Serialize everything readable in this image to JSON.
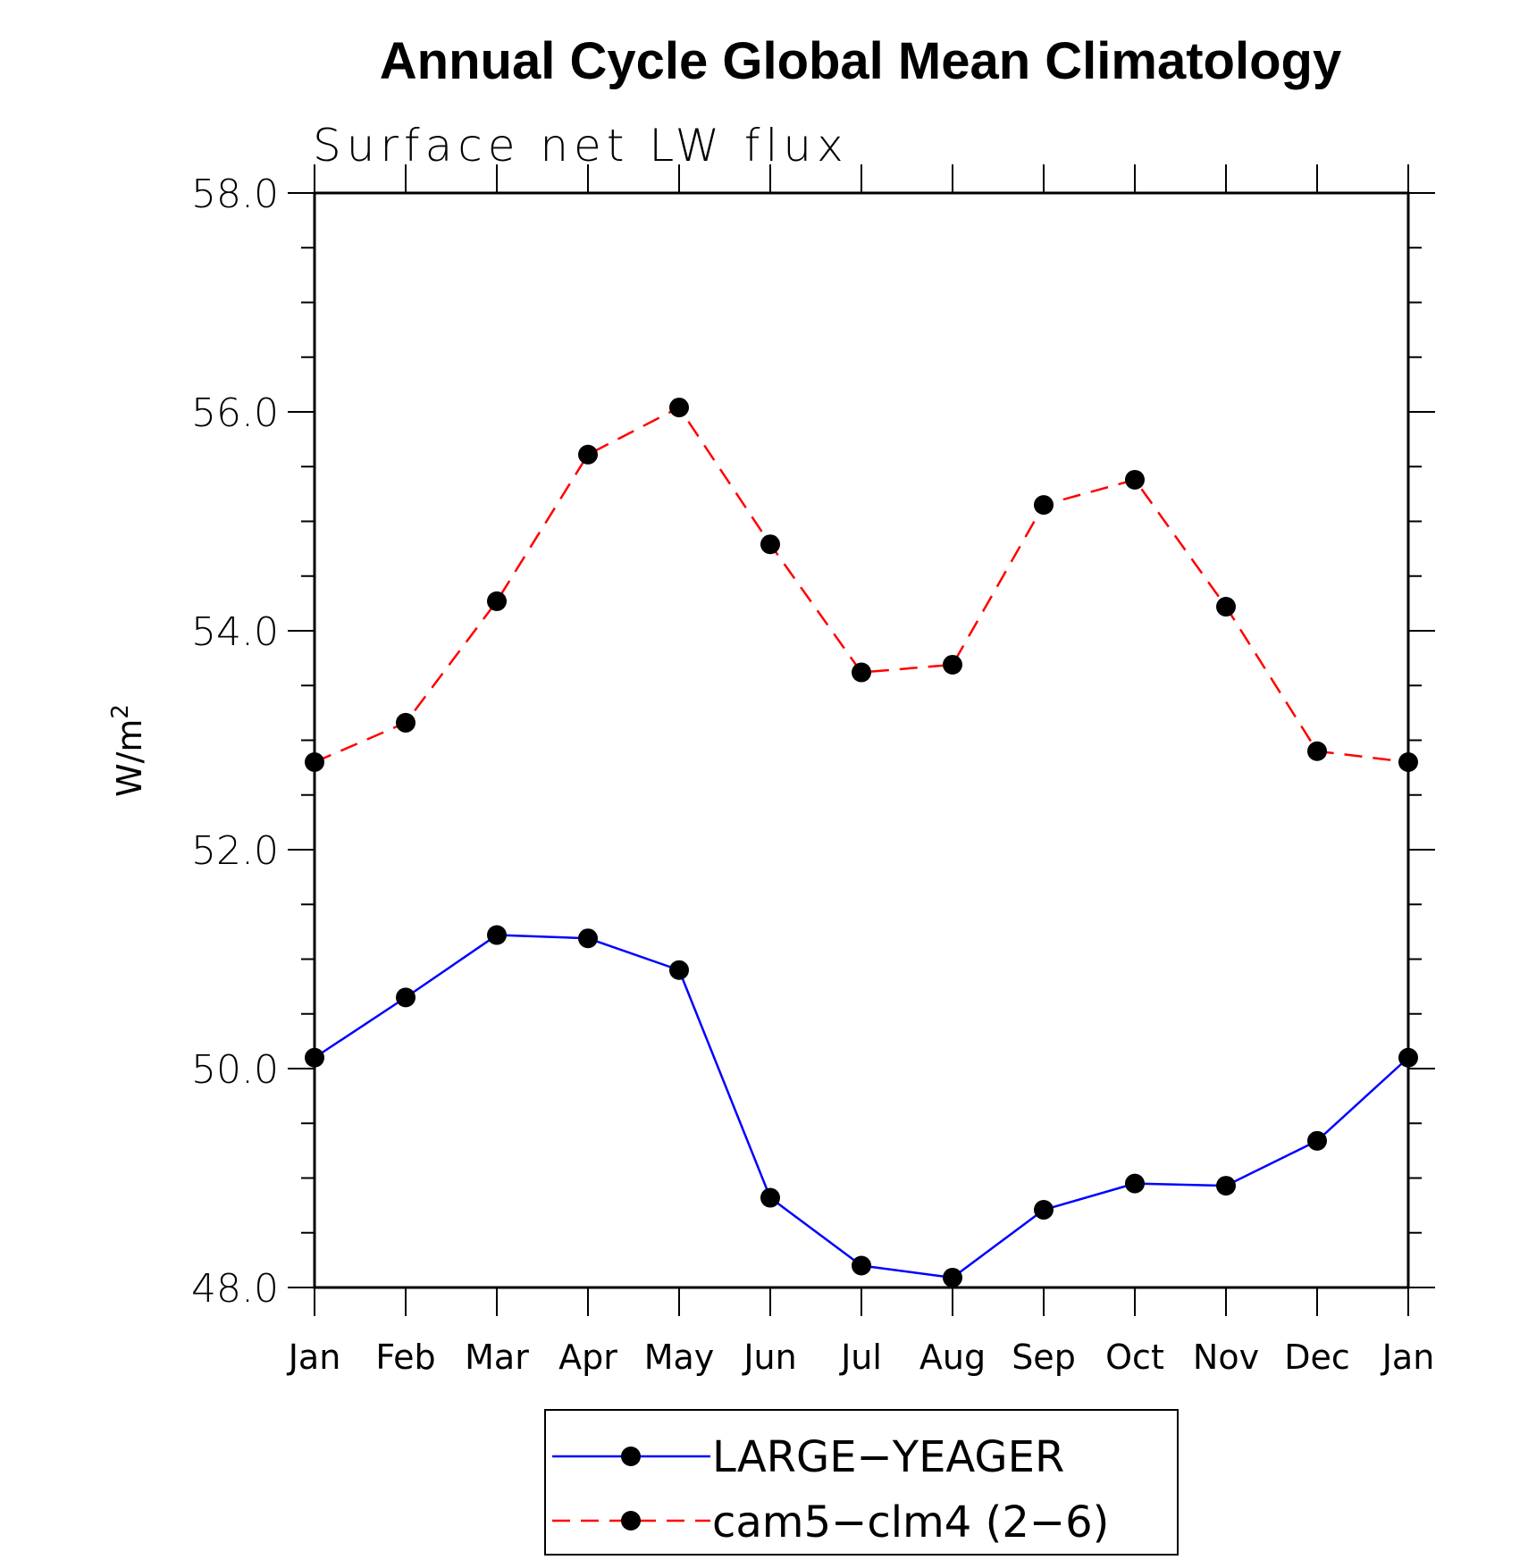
{
  "chart_data": {
    "type": "line",
    "title": "Annual Cycle Global Mean Climatology",
    "subtitle": "Surface net LW flux",
    "xlabel": "",
    "ylabel_base": "W/m",
    "ylabel_sup": "2",
    "categories": [
      "Jan",
      "Feb",
      "Mar",
      "Apr",
      "May",
      "Jun",
      "Jul",
      "Aug",
      "Sep",
      "Oct",
      "Nov",
      "Dec",
      "Jan"
    ],
    "ylim": [
      48.0,
      58.0
    ],
    "yticks": [
      "48.0",
      "50.0",
      "52.0",
      "54.0",
      "56.0",
      "58.0"
    ],
    "grid": false,
    "legend_position": "bottom",
    "series": [
      {
        "name": "LARGE−YEAGER",
        "color": "#0000ff",
        "dash": "solid",
        "marker": "filled-circle",
        "values": [
          50.1,
          50.65,
          51.22,
          51.19,
          50.9,
          48.82,
          48.2,
          48.09,
          48.71,
          48.95,
          48.93,
          49.34,
          50.1
        ]
      },
      {
        "name": "cam5−clm4 (2−6)",
        "color": "#ff0000",
        "dash": "dashed",
        "marker": "filled-circle",
        "values": [
          52.8,
          53.16,
          54.27,
          55.61,
          56.04,
          54.79,
          53.62,
          53.69,
          55.15,
          55.38,
          54.22,
          52.9,
          52.8
        ]
      }
    ]
  }
}
